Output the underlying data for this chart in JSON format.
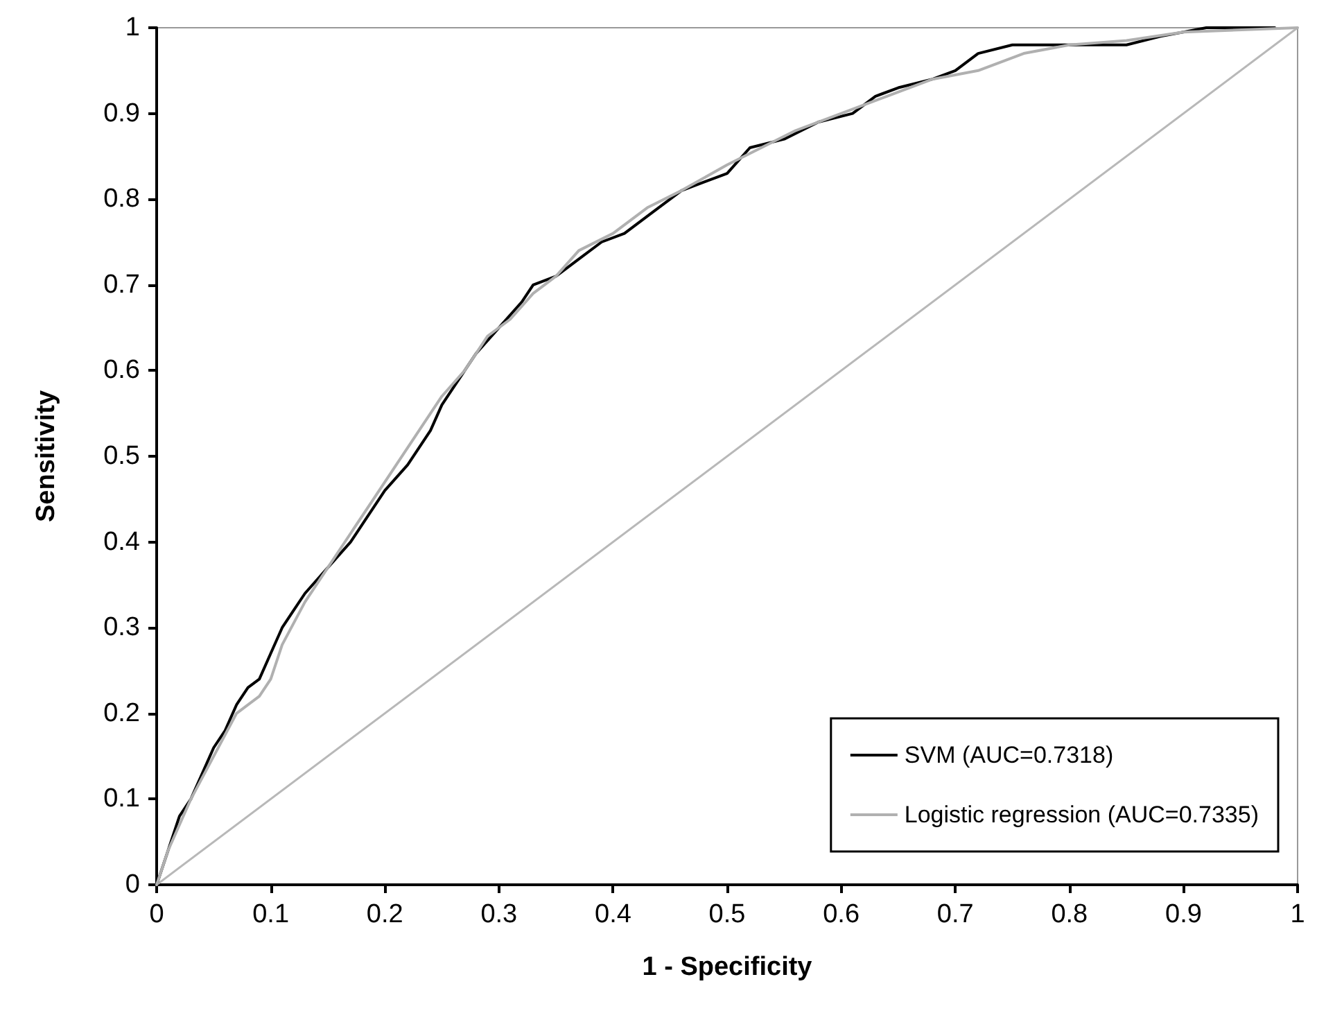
{
  "chart_data": {
    "type": "line",
    "xlabel": "1 - Specificity",
    "ylabel": "Sensitivity",
    "xlim": [
      0,
      1
    ],
    "ylim": [
      0,
      1
    ],
    "xticks": [
      0,
      0.1,
      0.2,
      0.3,
      0.4,
      0.5,
      0.6,
      0.7,
      0.8,
      0.9,
      1
    ],
    "yticks": [
      0,
      0.1,
      0.2,
      0.3,
      0.4,
      0.5,
      0.6,
      0.7,
      0.8,
      0.9,
      1
    ],
    "grid": false,
    "legend": "bottom right",
    "marker": "none",
    "line_style": "solid",
    "series": [
      {
        "name": "SVM (AUC=0.7318)",
        "color": "#000000",
        "x": [
          0,
          0.01,
          0.02,
          0.03,
          0.04,
          0.05,
          0.06,
          0.07,
          0.08,
          0.09,
          0.1,
          0.11,
          0.12,
          0.13,
          0.15,
          0.17,
          0.19,
          0.2,
          0.22,
          0.24,
          0.25,
          0.27,
          0.28,
          0.3,
          0.32,
          0.33,
          0.35,
          0.37,
          0.39,
          0.41,
          0.43,
          0.46,
          0.48,
          0.5,
          0.52,
          0.55,
          0.58,
          0.61,
          0.63,
          0.65,
          0.68,
          0.7,
          0.72,
          0.75,
          0.8,
          0.85,
          0.88,
          0.92,
          0.98
        ],
        "values": [
          0,
          0.04,
          0.08,
          0.1,
          0.13,
          0.16,
          0.18,
          0.21,
          0.23,
          0.24,
          0.27,
          0.3,
          0.32,
          0.34,
          0.37,
          0.4,
          0.44,
          0.46,
          0.49,
          0.53,
          0.56,
          0.6,
          0.62,
          0.65,
          0.68,
          0.7,
          0.71,
          0.73,
          0.75,
          0.76,
          0.78,
          0.81,
          0.82,
          0.83,
          0.86,
          0.87,
          0.89,
          0.9,
          0.92,
          0.93,
          0.94,
          0.95,
          0.97,
          0.98,
          0.98,
          0.98,
          0.99,
          1,
          1
        ]
      },
      {
        "name": "Logistic regression (AUC=0.7335)",
        "color": "#b0b0b0",
        "x": [
          0,
          0.01,
          0.02,
          0.03,
          0.05,
          0.07,
          0.09,
          0.1,
          0.11,
          0.13,
          0.15,
          0.17,
          0.19,
          0.21,
          0.23,
          0.25,
          0.27,
          0.29,
          0.31,
          0.33,
          0.35,
          0.37,
          0.4,
          0.43,
          0.46,
          0.5,
          0.53,
          0.56,
          0.6,
          0.64,
          0.68,
          0.72,
          0.76,
          0.8,
          0.85,
          0.9,
          1
        ],
        "values": [
          0,
          0.04,
          0.07,
          0.1,
          0.15,
          0.2,
          0.22,
          0.24,
          0.28,
          0.33,
          0.37,
          0.41,
          0.45,
          0.49,
          0.53,
          0.57,
          0.6,
          0.64,
          0.66,
          0.69,
          0.71,
          0.74,
          0.76,
          0.79,
          0.81,
          0.84,
          0.86,
          0.88,
          0.9,
          0.92,
          0.94,
          0.95,
          0.97,
          0.98,
          0.985,
          0.995,
          1
        ]
      },
      {
        "color": "#b8b8b8",
        "x": [
          0,
          1
        ],
        "values": [
          0,
          1
        ]
      }
    ]
  }
}
